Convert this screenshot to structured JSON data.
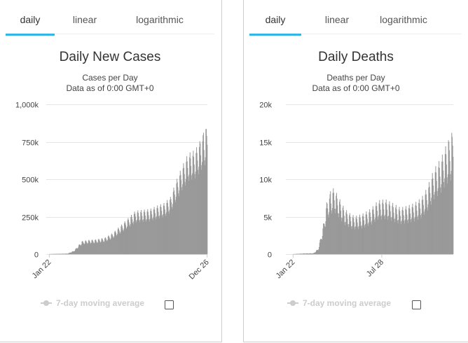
{
  "left": {
    "tabs": [
      "daily",
      "linear",
      "logarithmic"
    ],
    "active_tab": "daily",
    "checkbox_checked": false
  },
  "right": {
    "tabs": [
      "daily",
      "linear",
      "logarithmic"
    ],
    "active_tab": "daily",
    "checkbox_checked": false
  },
  "colors": {
    "bar": "#999999",
    "grid": "#e6e6e6",
    "tab_accent": "#33b5e5",
    "legend_disabled": "#cccccc"
  },
  "chart_data": [
    {
      "type": "bar",
      "title": "Daily New Cases",
      "subtitle_lines": [
        "Cases per Day",
        "Data as of 0:00 GMT+0"
      ],
      "ylim": [
        0,
        1000000
      ],
      "yticks": [
        0,
        250000,
        500000,
        750000,
        1000000
      ],
      "ytick_labels": [
        "0",
        "250k",
        "500k",
        "750k",
        "1,000k"
      ],
      "x_range": [
        "2020-01-22",
        "2020-12-26"
      ],
      "xtick_labels": [
        {
          "date": "2020-01-22",
          "label": "Jan 22"
        },
        {
          "date": "2020-12-26",
          "label": "Dec 26"
        }
      ],
      "legend": {
        "label": "7-day moving average",
        "enabled": false
      },
      "grid": true,
      "profile": [
        [
          "2020-01-22",
          500
        ],
        [
          "2020-02-12",
          2000
        ],
        [
          "2020-03-01",
          3000
        ],
        [
          "2020-03-15",
          20000
        ],
        [
          "2020-04-01",
          75000
        ],
        [
          "2020-04-15",
          82000
        ],
        [
          "2020-05-01",
          85000
        ],
        [
          "2020-05-20",
          95000
        ],
        [
          "2020-06-05",
          120000
        ],
        [
          "2020-06-25",
          170000
        ],
        [
          "2020-07-10",
          210000
        ],
        [
          "2020-07-25",
          250000
        ],
        [
          "2020-08-10",
          255000
        ],
        [
          "2020-08-25",
          260000
        ],
        [
          "2020-09-10",
          280000
        ],
        [
          "2020-09-25",
          295000
        ],
        [
          "2020-10-08",
          330000
        ],
        [
          "2020-10-20",
          420000
        ],
        [
          "2020-11-01",
          500000
        ],
        [
          "2020-11-15",
          580000
        ],
        [
          "2020-11-30",
          600000
        ],
        [
          "2020-12-10",
          650000
        ],
        [
          "2020-12-20",
          700000
        ],
        [
          "2020-12-26",
          730000
        ]
      ],
      "weekly_swing": 0.16,
      "peaks": [
        [
          "2020-12-11",
          740000
        ],
        [
          "2020-12-18",
          810000
        ],
        [
          "2020-12-23",
          835000
        ]
      ]
    },
    {
      "type": "bar",
      "title": "Daily Deaths",
      "subtitle_lines": [
        "Deaths per Day",
        "Data as of 0:00 GMT+0"
      ],
      "ylim": [
        0,
        20000
      ],
      "yticks": [
        0,
        5000,
        10000,
        15000,
        20000
      ],
      "ytick_labels": [
        "0",
        "5k",
        "10k",
        "15k",
        "20k"
      ],
      "x_range": [
        "2020-01-22",
        "2020-12-26"
      ],
      "xtick_labels": [
        {
          "date": "2020-01-22",
          "label": "Jan 22"
        },
        {
          "date": "2020-07-28",
          "label": "Jul 28"
        }
      ],
      "legend": {
        "label": "7-day moving average",
        "enabled": false
      },
      "grid": true,
      "profile": [
        [
          "2020-01-22",
          5
        ],
        [
          "2020-02-15",
          80
        ],
        [
          "2020-03-05",
          100
        ],
        [
          "2020-03-15",
          600
        ],
        [
          "2020-03-25",
          3000
        ],
        [
          "2020-04-03",
          6000
        ],
        [
          "2020-04-17",
          7300
        ],
        [
          "2020-04-28",
          6200
        ],
        [
          "2020-05-10",
          5000
        ],
        [
          "2020-05-25",
          4300
        ],
        [
          "2020-06-05",
          4200
        ],
        [
          "2020-06-20",
          4500
        ],
        [
          "2020-07-05",
          5000
        ],
        [
          "2020-07-20",
          5900
        ],
        [
          "2020-08-05",
          6000
        ],
        [
          "2020-08-20",
          5600
        ],
        [
          "2020-09-05",
          5100
        ],
        [
          "2020-09-20",
          5300
        ],
        [
          "2020-10-05",
          5600
        ],
        [
          "2020-10-20",
          6200
        ],
        [
          "2020-11-01",
          7300
        ],
        [
          "2020-11-15",
          9300
        ],
        [
          "2020-11-30",
          10500
        ],
        [
          "2020-12-10",
          11800
        ],
        [
          "2020-12-20",
          12500
        ],
        [
          "2020-12-26",
          13000
        ]
      ],
      "weekly_swing": 0.22,
      "peaks": [
        [
          "2020-04-10",
          8400
        ],
        [
          "2020-12-16",
          15200
        ],
        [
          "2020-12-23",
          16200
        ]
      ]
    }
  ]
}
